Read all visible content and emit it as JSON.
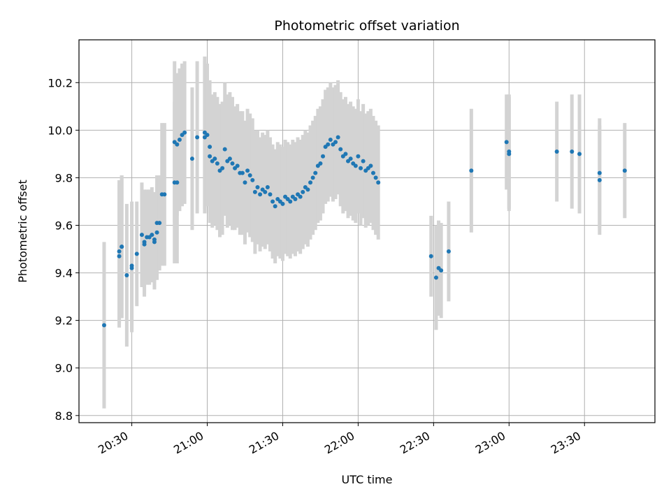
{
  "chart_data": {
    "type": "scatter",
    "title": "Photometric offset variation",
    "xlabel": "UTC time",
    "ylabel": "Photometric offset",
    "xlim": [
      "20:09",
      "23:58"
    ],
    "ylim": [
      8.77,
      10.38
    ],
    "xticks": [
      "20:30",
      "21:00",
      "21:30",
      "22:00",
      "22:30",
      "23:00",
      "23:30"
    ],
    "yticks": [
      "8.8",
      "9.0",
      "9.2",
      "9.4",
      "9.6",
      "9.8",
      "10.0",
      "10.2"
    ],
    "grid": true,
    "point_color": "#1f77b4",
    "errorbar_color": "#d3d3d3",
    "series": [
      {
        "x": [
          "20:19",
          "20:25",
          "20:25",
          "20:26",
          "20:26",
          "20:28",
          "20:30",
          "20:30",
          "20:32",
          "20:34",
          "20:35",
          "20:35",
          "20:36",
          "20:37",
          "20:38",
          "20:39",
          "20:39",
          "20:40",
          "20:40",
          "20:41",
          "20:42",
          "20:43",
          "20:47",
          "20:47",
          "20:48",
          "20:48",
          "20:49",
          "20:50",
          "20:51",
          "20:54",
          "20:56",
          "20:59",
          "20:59",
          "21:00",
          "21:01",
          "21:01",
          "21:02",
          "21:03",
          "21:04",
          "21:05",
          "21:06",
          "21:07",
          "21:08",
          "21:09",
          "21:10",
          "21:11",
          "21:12",
          "21:13",
          "21:14",
          "21:15",
          "21:16",
          "21:17",
          "21:18",
          "21:19",
          "21:20",
          "21:21",
          "21:22",
          "21:23",
          "21:24",
          "21:25",
          "21:26",
          "21:27",
          "21:28",
          "21:29",
          "21:30",
          "21:31",
          "21:32",
          "21:33",
          "21:34",
          "21:35",
          "21:36",
          "21:37",
          "21:38",
          "21:39",
          "21:40",
          "21:41",
          "21:42",
          "21:43",
          "21:44",
          "21:45",
          "21:46",
          "21:47",
          "21:48",
          "21:49",
          "21:50",
          "21:51",
          "21:52",
          "21:53",
          "21:54",
          "21:55",
          "21:56",
          "21:57",
          "21:58",
          "21:59",
          "22:00",
          "22:01",
          "22:02",
          "22:03",
          "22:04",
          "22:05",
          "22:06",
          "22:07",
          "22:08",
          "22:29",
          "22:31",
          "22:32",
          "22:33",
          "22:36",
          "22:45",
          "22:59",
          "23:00",
          "23:00",
          "23:19",
          "23:25",
          "23:28",
          "23:36",
          "23:36",
          "23:46"
        ],
        "y": [
          9.18,
          9.47,
          9.49,
          9.51,
          9.51,
          9.39,
          9.42,
          9.43,
          9.48,
          9.56,
          9.53,
          9.52,
          9.55,
          9.55,
          9.56,
          9.54,
          9.53,
          9.61,
          9.57,
          9.61,
          9.73,
          9.73,
          9.95,
          9.78,
          9.78,
          9.94,
          9.96,
          9.98,
          9.99,
          9.88,
          9.97,
          9.99,
          9.97,
          9.98,
          9.93,
          9.89,
          9.87,
          9.88,
          9.86,
          9.83,
          9.84,
          9.92,
          9.87,
          9.88,
          9.86,
          9.84,
          9.85,
          9.82,
          9.82,
          9.78,
          9.83,
          9.81,
          9.79,
          9.74,
          9.76,
          9.73,
          9.75,
          9.74,
          9.76,
          9.73,
          9.7,
          9.68,
          9.71,
          9.7,
          9.69,
          9.72,
          9.71,
          9.7,
          9.72,
          9.71,
          9.73,
          9.72,
          9.74,
          9.76,
          9.75,
          9.78,
          9.8,
          9.82,
          9.85,
          9.86,
          9.89,
          9.93,
          9.94,
          9.96,
          9.94,
          9.95,
          9.97,
          9.92,
          9.89,
          9.9,
          9.87,
          9.88,
          9.86,
          9.85,
          9.89,
          9.84,
          9.87,
          9.83,
          9.84,
          9.85,
          9.82,
          9.8,
          9.78,
          9.47,
          9.38,
          9.42,
          9.41,
          9.49,
          9.83,
          9.95,
          9.91,
          9.9,
          9.91,
          9.91,
          9.9,
          9.79,
          9.82,
          9.83
        ],
        "yerr": [
          0.35,
          0.3,
          0.3,
          0.3,
          0.3,
          0.3,
          0.27,
          0.27,
          0.22,
          0.22,
          0.22,
          0.22,
          0.2,
          0.2,
          0.2,
          0.2,
          0.2,
          0.2,
          0.2,
          0.2,
          0.3,
          0.3,
          0.34,
          0.34,
          0.34,
          0.3,
          0.3,
          0.3,
          0.3,
          0.3,
          0.32,
          0.32,
          0.32,
          0.3,
          0.28,
          0.28,
          0.28,
          0.28,
          0.28,
          0.28,
          0.28,
          0.28,
          0.28,
          0.28,
          0.28,
          0.26,
          0.26,
          0.26,
          0.26,
          0.26,
          0.26,
          0.26,
          0.26,
          0.26,
          0.24,
          0.24,
          0.24,
          0.24,
          0.24,
          0.24,
          0.24,
          0.24,
          0.24,
          0.24,
          0.24,
          0.24,
          0.24,
          0.24,
          0.24,
          0.24,
          0.24,
          0.24,
          0.24,
          0.24,
          0.24,
          0.24,
          0.24,
          0.24,
          0.24,
          0.24,
          0.24,
          0.24,
          0.24,
          0.24,
          0.24,
          0.24,
          0.24,
          0.24,
          0.24,
          0.24,
          0.24,
          0.24,
          0.24,
          0.24,
          0.24,
          0.24,
          0.24,
          0.24,
          0.24,
          0.24,
          0.24,
          0.24,
          0.24,
          0.17,
          0.22,
          0.2,
          0.2,
          0.21,
          0.26,
          0.2,
          0.24,
          0.24,
          0.21,
          0.24,
          0.25,
          0.23,
          0.23,
          0.2
        ]
      }
    ]
  }
}
